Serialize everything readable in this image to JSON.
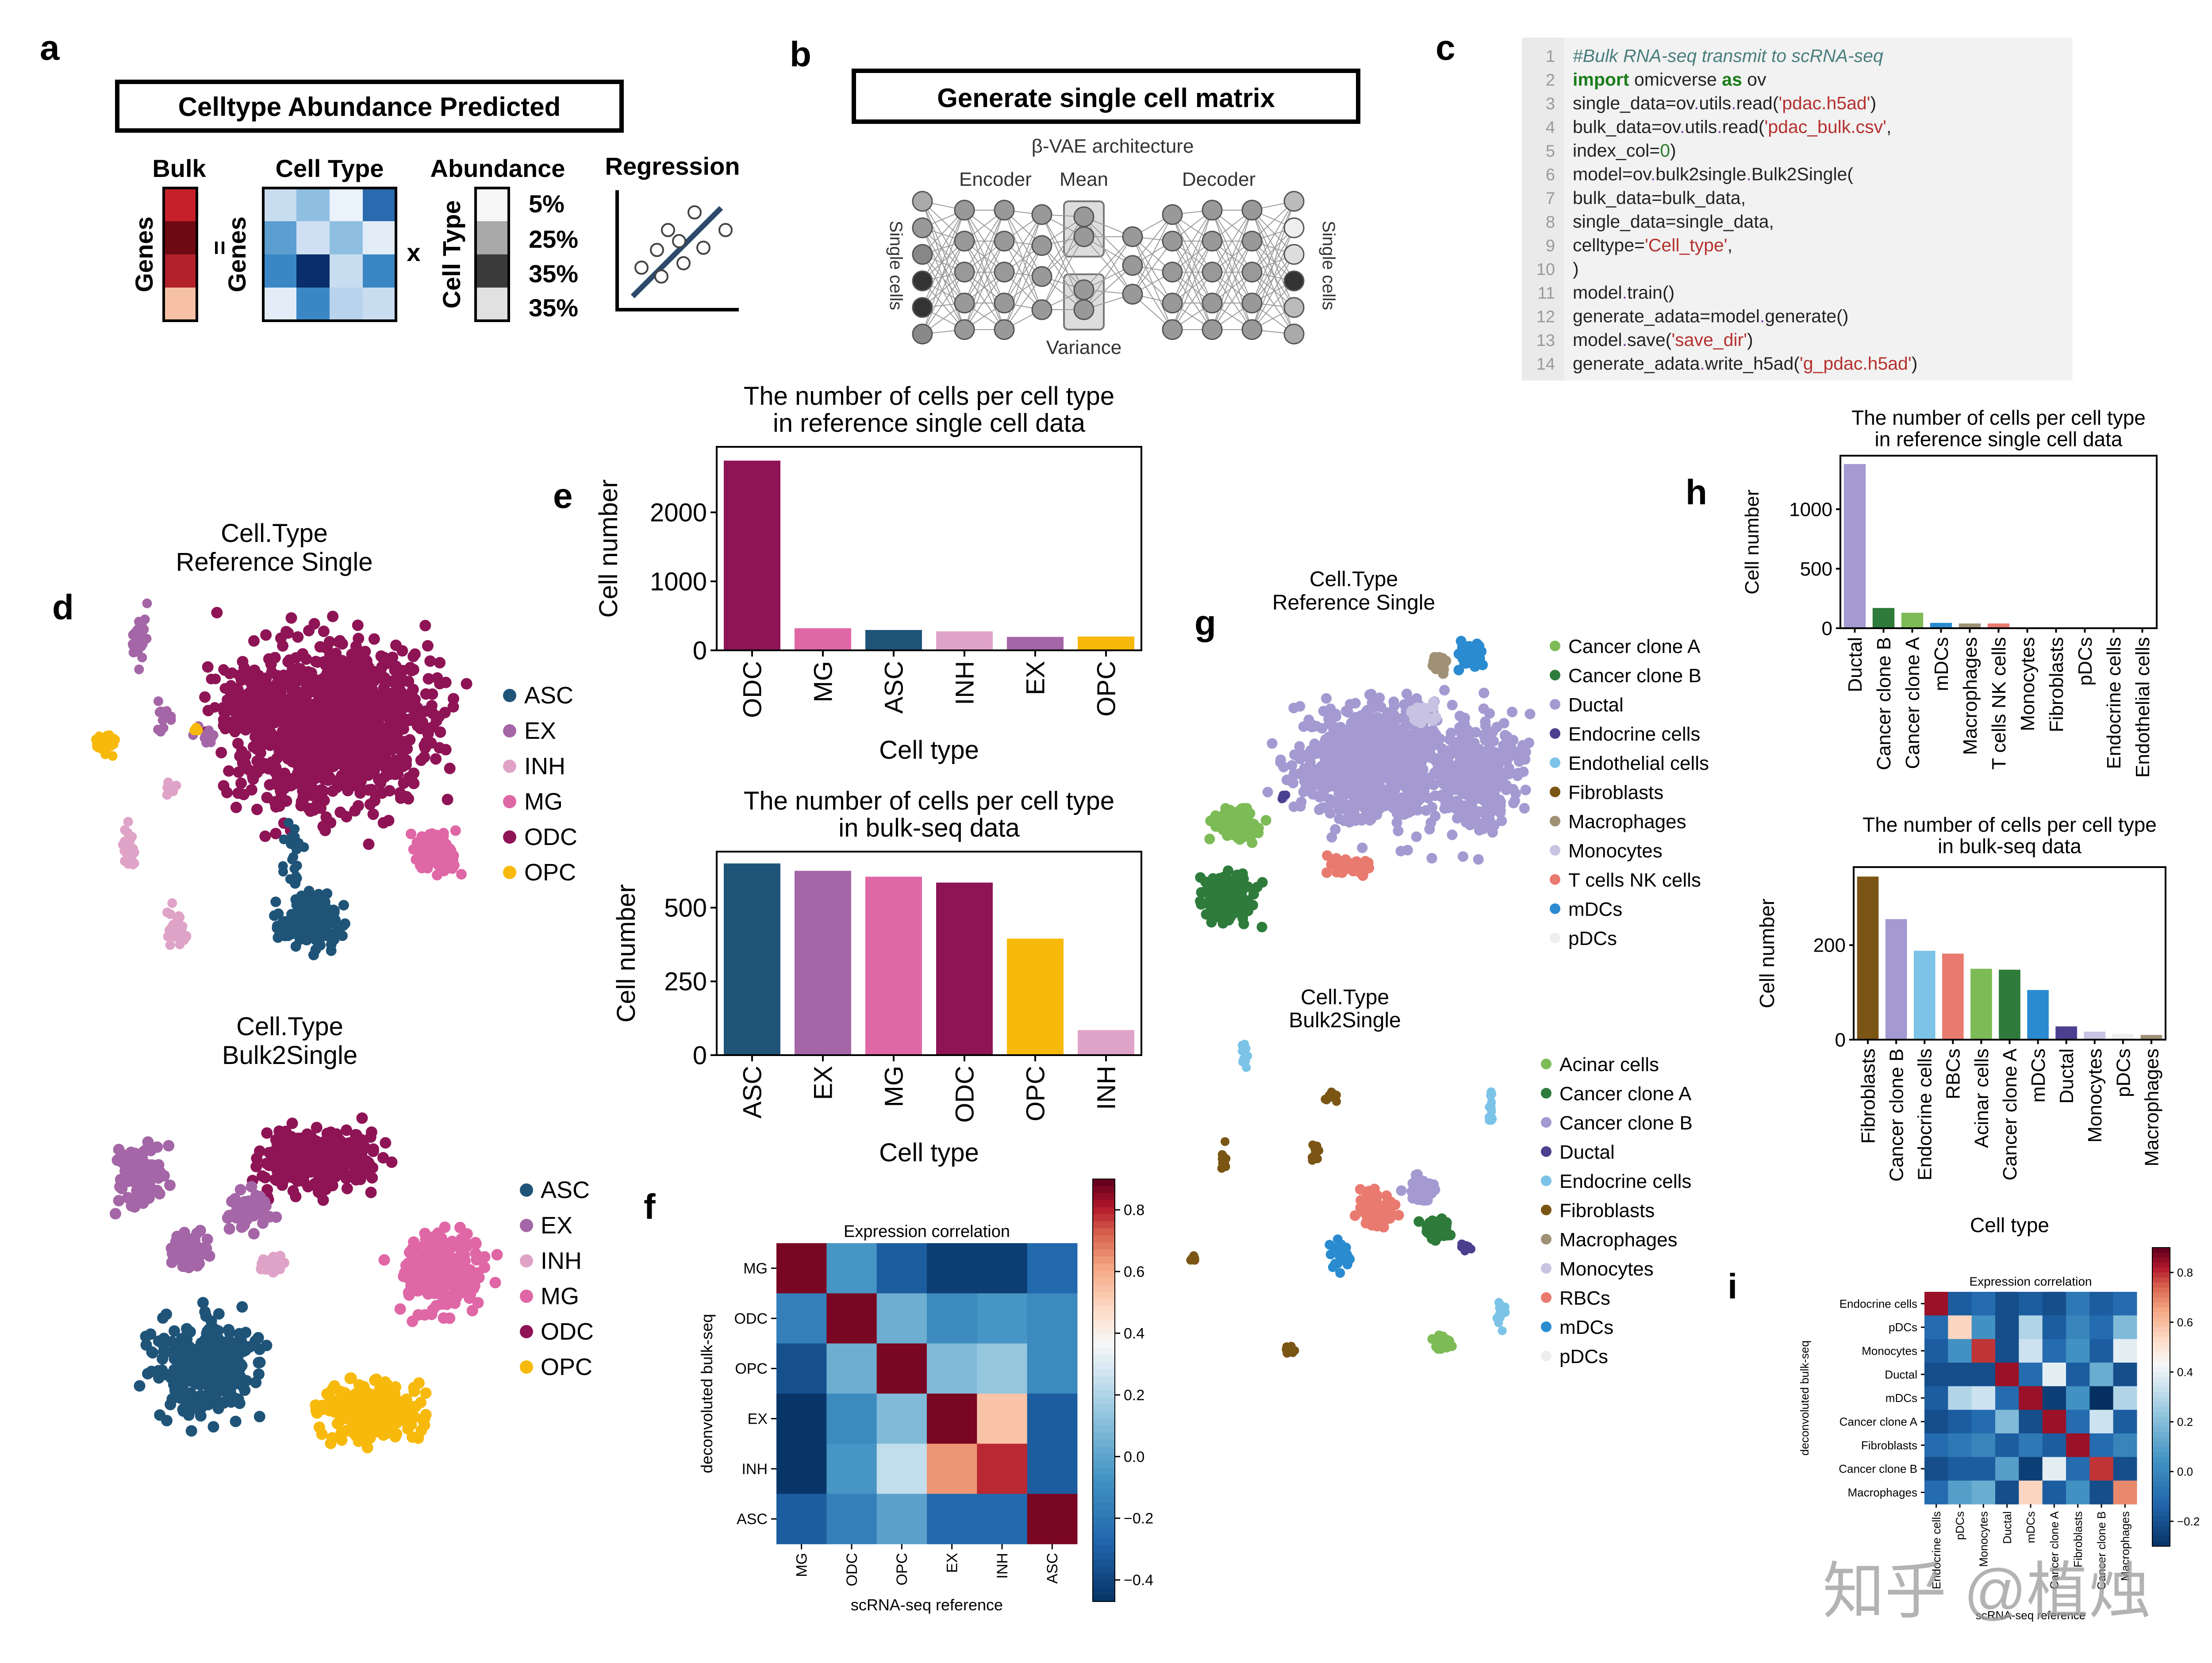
{
  "panel_letters": {
    "a": "a",
    "b": "b",
    "c": "c",
    "d": "d",
    "e": "e",
    "f": "f",
    "g": "g",
    "h": "h",
    "i": "i"
  },
  "panel_a": {
    "box_title": "Celltype Abundance Predicted",
    "bulk_label": "Bulk",
    "genes_label": "Genes",
    "equals": "=",
    "celltype_label": "Cell Type",
    "abundance_label": "Abundance",
    "times": "x",
    "celltype_axis": "Cell Type",
    "regression_label": "Regression",
    "abundance_values": [
      "5%",
      "25%",
      "35%",
      "35%"
    ]
  },
  "panel_b": {
    "box_title": "Generate single cell matrix",
    "arch_label": "β-VAE architecture",
    "encoder": "Encoder",
    "mean": "Mean",
    "decoder": "Decoder",
    "variance": "Variance",
    "left_side": "Single cells",
    "right_side": "Single cells"
  },
  "panel_c": {
    "lines": [
      "#Bulk RNA-seq transmit to scRNA-seq",
      "import omicverse as ov",
      "single_data=ov.utils.read('pdac.h5ad')",
      "bulk_data=ov.utils.read('pdac_bulk.csv',",
      "                        index_col=0)",
      "model=ov.bulk2single.Bulk2Single(",
      "    bulk_data=bulk_data,",
      "    single_data=single_data,",
      "    celltype='Cell_type',",
      ")",
      "model.train()",
      "generate_adata=model.generate()",
      "model.save('save_dir')",
      "generate_adata.write_h5ad('g_pdac.h5ad')"
    ],
    "line_numbers": [
      "1",
      "2",
      "3",
      "4",
      "5",
      "6",
      "7",
      "8",
      "9",
      "10",
      "11",
      "12",
      "13",
      "14"
    ]
  },
  "panel_d": {
    "umap1_title": [
      "Cell.Type",
      "Reference Single"
    ],
    "umap2_title": [
      "Cell.Type",
      "Bulk2Single"
    ],
    "legend": [
      "ASC",
      "EX",
      "INH",
      "MG",
      "ODC",
      "OPC"
    ],
    "colors": {
      "ASC": "#1f5478",
      "EX": "#a466a6",
      "INH": "#e0a3c8",
      "MG": "#df67a6",
      "ODC": "#8e1456",
      "OPC": "#f7b90b"
    }
  },
  "panel_g": {
    "umap1_title": [
      "Cell.Type",
      "Reference Single"
    ],
    "umap2_title": [
      "Cell.Type",
      "Bulk2Single"
    ],
    "legend1": [
      "Cancer clone A",
      "Cancer clone B",
      "Ductal",
      "Endocrine cells",
      "Endothelial cells",
      "Fibroblasts",
      "Macrophages",
      "Monocytes",
      "T cells   NK cells",
      "mDCs",
      "pDCs"
    ],
    "legend1_colors": [
      "#7dbb57",
      "#2e7b3b",
      "#a49ad1",
      "#4b3f8f",
      "#7cc3e8",
      "#7a5514",
      "#a09176",
      "#c9c3e3",
      "#e97a70",
      "#2a8bd0",
      "#eeeeee"
    ],
    "legend2": [
      "Acinar cells",
      "Cancer clone A",
      "Cancer clone B",
      "Ductal",
      "Endocrine cells",
      "Fibroblasts",
      "Macrophages",
      "Monocytes",
      "RBCs",
      "mDCs",
      "pDCs"
    ],
    "legend2_colors": [
      "#7dbb57",
      "#2e7b3b",
      "#a49ad1",
      "#4b3f8f",
      "#7cc3e8",
      "#7a5514",
      "#a09176",
      "#c9c3e3",
      "#e97a70",
      "#2a8bd0",
      "#eeeeee"
    ]
  },
  "chart_data": [
    {
      "id": "e1",
      "type": "bar",
      "title": "The number of cells per cell type\nin reference single cell data",
      "xlabel": "Cell type",
      "ylabel": "Cell number",
      "categories": [
        "ODC",
        "MG",
        "ASC",
        "INH",
        "EX",
        "OPC"
      ],
      "values": [
        2750,
        320,
        295,
        275,
        195,
        200
      ],
      "colors": [
        "#8e1456",
        "#df67a6",
        "#1f5478",
        "#e0a3c8",
        "#a466a6",
        "#f7b90b"
      ],
      "ylim": [
        0,
        2950
      ],
      "yticks": [
        0,
        1000,
        2000
      ]
    },
    {
      "id": "e2",
      "type": "bar",
      "title": "The number of cells per cell type\nin bulk-seq data",
      "xlabel": "Cell type",
      "ylabel": "Cell number",
      "categories": [
        "ASC",
        "EX",
        "MG",
        "ODC",
        "OPC",
        "INH"
      ],
      "values": [
        650,
        625,
        605,
        585,
        395,
        85
      ],
      "colors": [
        "#1f5478",
        "#a466a6",
        "#df67a6",
        "#8e1456",
        "#f7b90b",
        "#e0a3c8"
      ],
      "ylim": [
        0,
        690
      ],
      "yticks": [
        0,
        250,
        500
      ]
    },
    {
      "id": "f",
      "type": "heatmap",
      "title": "Expression correlation",
      "xlabel": "scRNA-seq reference",
      "ylabel": "deconvoluted bulk-seq",
      "rows": [
        "MG",
        "ODC",
        "OPC",
        "EX",
        "INH",
        "ASC"
      ],
      "cols": [
        "MG",
        "ODC",
        "OPC",
        "EX",
        "INH",
        "ASC"
      ],
      "values": [
        [
          0.88,
          -0.05,
          -0.3,
          -0.42,
          -0.42,
          -0.25
        ],
        [
          -0.15,
          0.88,
          0.05,
          -0.1,
          -0.05,
          -0.1
        ],
        [
          -0.35,
          0.05,
          0.88,
          0.1,
          0.15,
          -0.1
        ],
        [
          -0.45,
          -0.1,
          0.1,
          0.88,
          0.55,
          -0.3
        ],
        [
          -0.45,
          -0.05,
          0.25,
          0.65,
          0.8,
          -0.3
        ],
        [
          -0.3,
          -0.15,
          0.0,
          -0.25,
          -0.25,
          0.88
        ]
      ],
      "colorbar_ticks": [
        0.8,
        0.6,
        0.4,
        0.2,
        0.0,
        -0.2,
        -0.4
      ],
      "colorbar_labels": [
        "0.8",
        "0.6",
        "0.4",
        "0.2",
        "0.0",
        "−0.2",
        "−0.4"
      ],
      "vmin": -0.47,
      "vmax": 0.9
    },
    {
      "id": "h1",
      "type": "bar",
      "title": "The number of cells per cell type\nin reference single cell data",
      "xlabel": "",
      "ylabel": "Cell number",
      "categories": [
        "Ductal",
        "Cancer clone B",
        "Cancer clone A",
        "mDCs",
        "Macrophages",
        "T cells   NK cells",
        "Monocytes",
        "Fibroblasts",
        "pDCs",
        "Endocrine cells",
        "Endothelial cells"
      ],
      "values": [
        1380,
        170,
        130,
        45,
        40,
        40,
        8,
        6,
        4,
        4,
        3
      ],
      "colors": [
        "#a49ad1",
        "#2e7b3b",
        "#7dbb57",
        "#2a8bd0",
        "#a09176",
        "#e97a70",
        "#c9c3e3",
        "#7a5514",
        "#eeeeee",
        "#7cc3e8",
        "#7cc3e8"
      ],
      "ylim": [
        0,
        1450
      ],
      "yticks": [
        0,
        500,
        1000
      ]
    },
    {
      "id": "h2",
      "type": "bar",
      "title": "The number of cells per cell type\nin bulk-seq data",
      "xlabel": "Cell type",
      "ylabel": "Cell number",
      "categories": [
        "Fibroblasts",
        "Cancer clone B",
        "Endocrine cells",
        "RBCs",
        "Acinar cells",
        "Cancer clone A",
        "mDCs",
        "Ductal",
        "Monocytes",
        "pDCs",
        "Macrophages"
      ],
      "values": [
        345,
        255,
        188,
        182,
        150,
        148,
        105,
        28,
        17,
        12,
        10
      ],
      "colors": [
        "#7a5514",
        "#a49ad1",
        "#7cc3e8",
        "#e97a70",
        "#7dbb57",
        "#2e7b3b",
        "#2a8bd0",
        "#4b3f8f",
        "#c9c3e3",
        "#eeeeee",
        "#a09176"
      ],
      "ylim": [
        0,
        365
      ],
      "yticks": [
        0,
        200
      ]
    },
    {
      "id": "i",
      "type": "heatmap",
      "title": "Expression correlation",
      "xlabel": "scRNA-seq reference",
      "ylabel": "deconvoluted bulk-seq",
      "rows": [
        "Endocrine cells",
        "pDCs",
        "Monocytes",
        "Ductal",
        "mDCs",
        "Cancer clone A",
        "Fibroblasts",
        "Cancer clone B",
        "Macrophages"
      ],
      "cols": [
        "Endocrine cells",
        "pDCs",
        "Monocytes",
        "Ductal",
        "mDCs",
        "Cancer clone A",
        "Fibroblasts",
        "Cancer clone B",
        "Macrophages"
      ],
      "values": [
        [
          0.85,
          -0.15,
          -0.1,
          -0.2,
          -0.15,
          -0.2,
          -0.05,
          -0.15,
          -0.1
        ],
        [
          -0.1,
          0.55,
          0.05,
          -0.2,
          0.3,
          -0.15,
          0.0,
          -0.1,
          0.2
        ],
        [
          -0.15,
          0.05,
          0.8,
          -0.2,
          0.35,
          -0.1,
          0.05,
          -0.15,
          0.4
        ],
        [
          -0.2,
          -0.2,
          -0.2,
          0.85,
          -0.1,
          0.4,
          -0.15,
          0.15,
          -0.2
        ],
        [
          -0.15,
          0.3,
          0.35,
          -0.1,
          0.85,
          -0.25,
          0.05,
          -0.3,
          0.3
        ],
        [
          -0.2,
          -0.15,
          -0.1,
          0.2,
          -0.2,
          0.85,
          -0.1,
          0.35,
          -0.15
        ],
        [
          -0.1,
          -0.05,
          0.0,
          -0.15,
          -0.05,
          -0.15,
          0.85,
          -0.1,
          0.0
        ],
        [
          -0.2,
          -0.15,
          -0.15,
          0.1,
          -0.25,
          0.4,
          -0.1,
          0.8,
          -0.2
        ],
        [
          -0.1,
          0.1,
          0.15,
          -0.2,
          0.55,
          -0.15,
          0.05,
          -0.2,
          0.7
        ]
      ],
      "colorbar_ticks": [
        0.8,
        0.6,
        0.4,
        0.2,
        0.0,
        -0.2
      ],
      "colorbar_labels": [
        "0.8",
        "0.6",
        "0.4",
        "0.2",
        "0.0",
        "−0.2"
      ],
      "vmin": -0.3,
      "vmax": 0.9
    }
  ],
  "watermark": "知乎 @植烛"
}
